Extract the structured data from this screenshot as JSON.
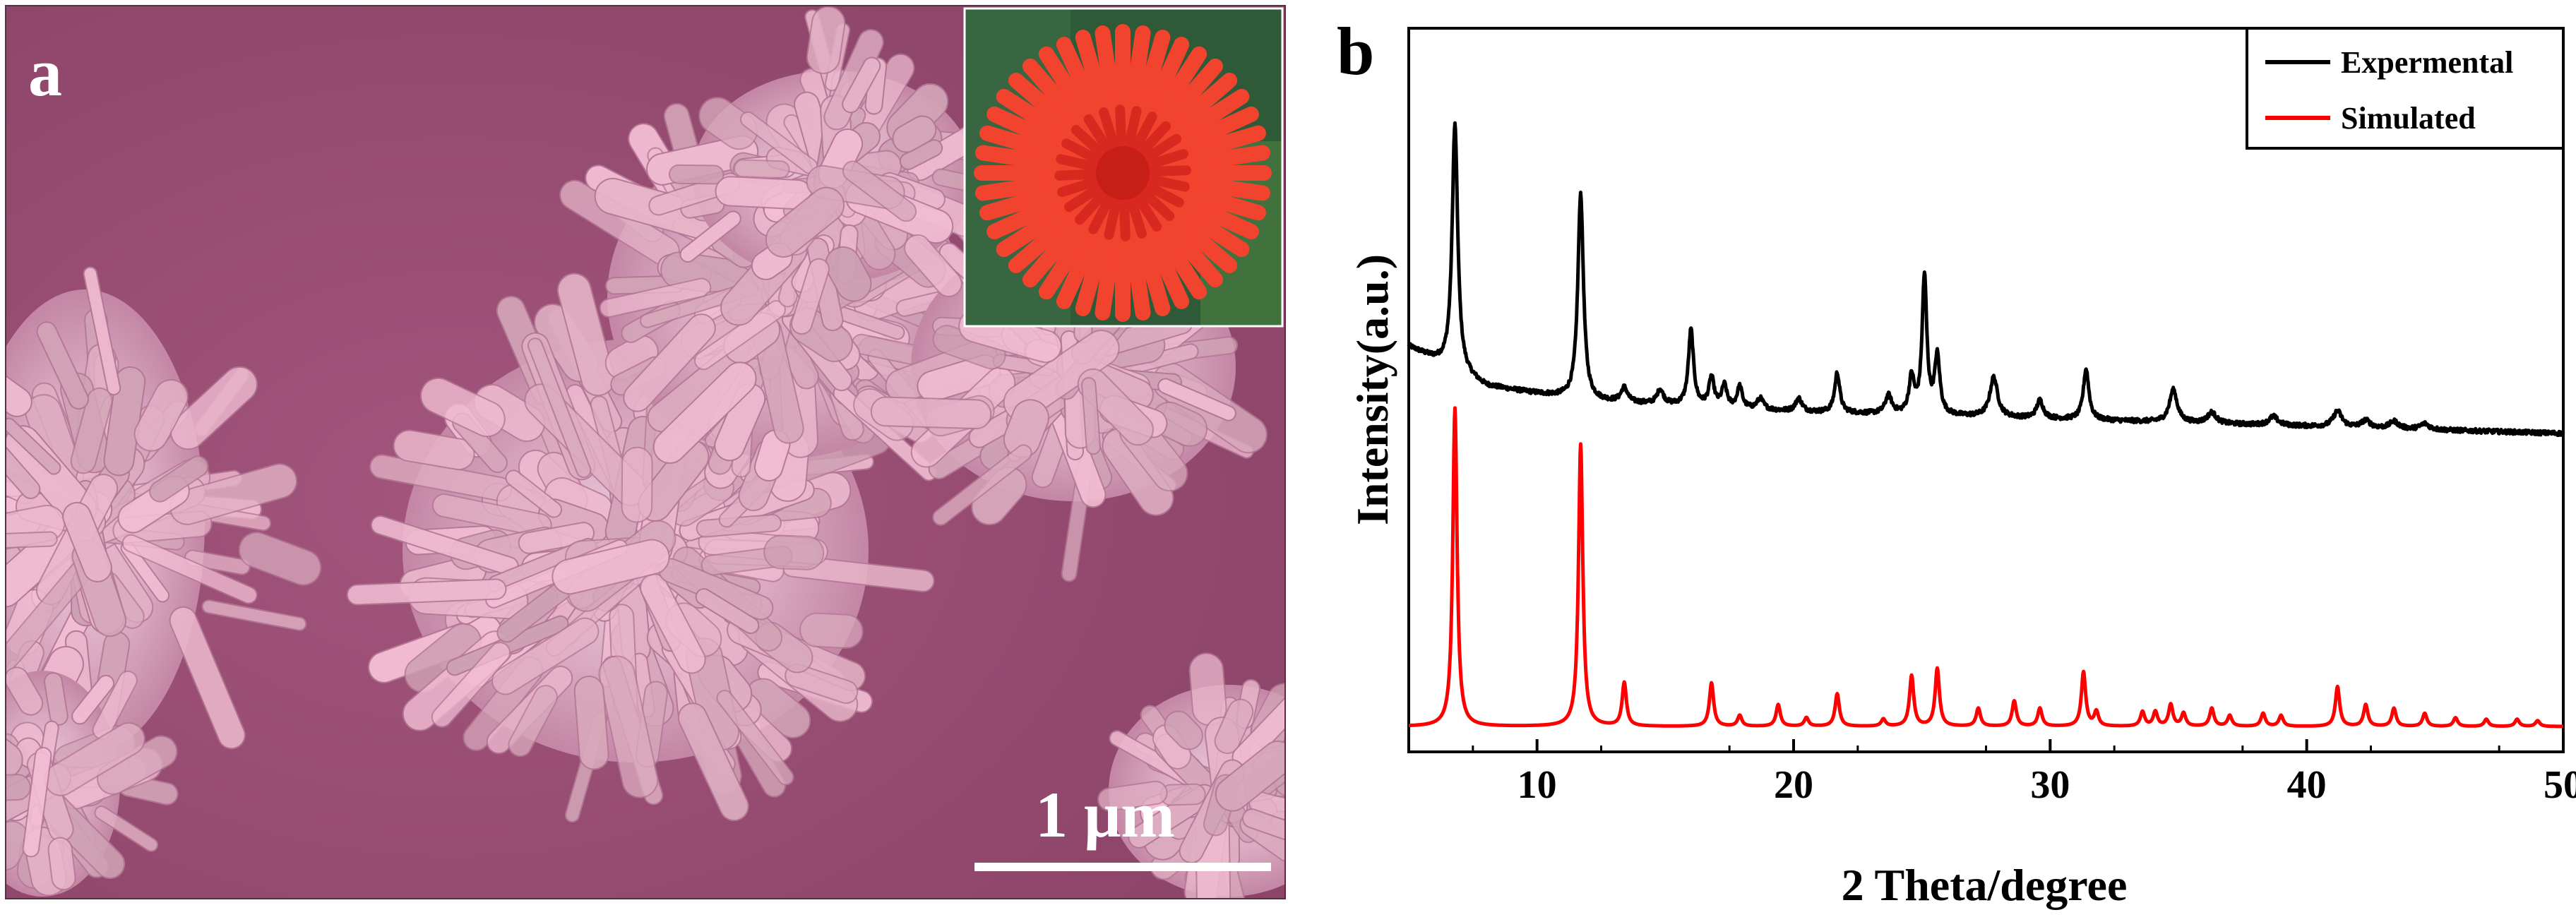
{
  "panel_a": {
    "label": "a",
    "scale_bar_label": "1 μm",
    "sem_tint": "#9b4e74",
    "inset_flower_color": "#f03a2e"
  },
  "panel_b": {
    "label": "b"
  },
  "chart_data": {
    "type": "line",
    "title": "",
    "xlabel": "2 Theta/degree",
    "ylabel": "Intensity(a.u.)",
    "xlim": [
      5,
      50
    ],
    "xticks": [
      10,
      20,
      30,
      40,
      50
    ],
    "ylim": [
      0,
      100
    ],
    "y_ticks_shown": false,
    "grid": false,
    "legend_position": "top-right",
    "series": [
      {
        "name": "Expermental",
        "color": "#000000",
        "baseline": [
          [
            5,
            56.0
          ],
          [
            8,
            50.5
          ],
          [
            12,
            48.5
          ],
          [
            20,
            47.0
          ],
          [
            30,
            46.0
          ],
          [
            40,
            45.0
          ],
          [
            50,
            44.0
          ]
        ],
        "peaks": [
          [
            6.8,
            34,
            0.13
          ],
          [
            11.7,
            28.5,
            0.13
          ],
          [
            13.4,
            2,
            0.15
          ],
          [
            14.8,
            2,
            0.15
          ],
          [
            16.0,
            10.5,
            0.12
          ],
          [
            16.8,
            4,
            0.12
          ],
          [
            17.3,
            3,
            0.12
          ],
          [
            17.9,
            3,
            0.12
          ],
          [
            18.7,
            1.5,
            0.15
          ],
          [
            20.2,
            1.8,
            0.15
          ],
          [
            21.7,
            5.5,
            0.12
          ],
          [
            23.7,
            2.5,
            0.15
          ],
          [
            24.6,
            5,
            0.12
          ],
          [
            25.1,
            19,
            0.11
          ],
          [
            25.6,
            8,
            0.12
          ],
          [
            27.8,
            5.5,
            0.18
          ],
          [
            29.6,
            2.5,
            0.15
          ],
          [
            31.4,
            7,
            0.13
          ],
          [
            34.8,
            4.5,
            0.18
          ],
          [
            36.3,
            1.5,
            0.2
          ],
          [
            38.7,
            1.2,
            0.2
          ],
          [
            41.2,
            2.2,
            0.2
          ],
          [
            42.3,
            1,
            0.2
          ],
          [
            43.4,
            1,
            0.2
          ],
          [
            44.6,
            0.8,
            0.2
          ]
        ]
      },
      {
        "name": "Simulated",
        "color": "#ff0000",
        "baseline": [
          [
            5,
            3.5
          ],
          [
            50,
            3.5
          ]
        ],
        "peaks": [
          [
            6.8,
            44,
            0.1
          ],
          [
            11.7,
            39,
            0.1
          ],
          [
            13.4,
            6,
            0.1
          ],
          [
            16.8,
            6,
            0.1
          ],
          [
            17.9,
            1.5,
            0.1
          ],
          [
            19.4,
            3,
            0.1
          ],
          [
            20.5,
            1.2,
            0.1
          ],
          [
            21.7,
            4.5,
            0.1
          ],
          [
            23.5,
            1,
            0.1
          ],
          [
            24.6,
            7,
            0.1
          ],
          [
            25.6,
            8,
            0.1
          ],
          [
            27.2,
            2.5,
            0.1
          ],
          [
            28.6,
            3.5,
            0.1
          ],
          [
            29.6,
            2.5,
            0.1
          ],
          [
            31.3,
            7.5,
            0.1
          ],
          [
            31.8,
            2,
            0.1
          ],
          [
            33.6,
            2,
            0.1
          ],
          [
            34.1,
            2,
            0.1
          ],
          [
            34.7,
            3,
            0.1
          ],
          [
            35.2,
            1.8,
            0.1
          ],
          [
            36.3,
            2.5,
            0.1
          ],
          [
            37.0,
            1.5,
            0.1
          ],
          [
            38.3,
            1.8,
            0.1
          ],
          [
            39.0,
            1.5,
            0.1
          ],
          [
            41.2,
            5.5,
            0.1
          ],
          [
            42.3,
            3,
            0.1
          ],
          [
            43.4,
            2.5,
            0.1
          ],
          [
            44.6,
            1.8,
            0.1
          ],
          [
            45.8,
            1.2,
            0.1
          ],
          [
            47.0,
            1,
            0.1
          ],
          [
            48.2,
            1,
            0.1
          ],
          [
            49.0,
            0.8,
            0.1
          ]
        ]
      }
    ]
  }
}
